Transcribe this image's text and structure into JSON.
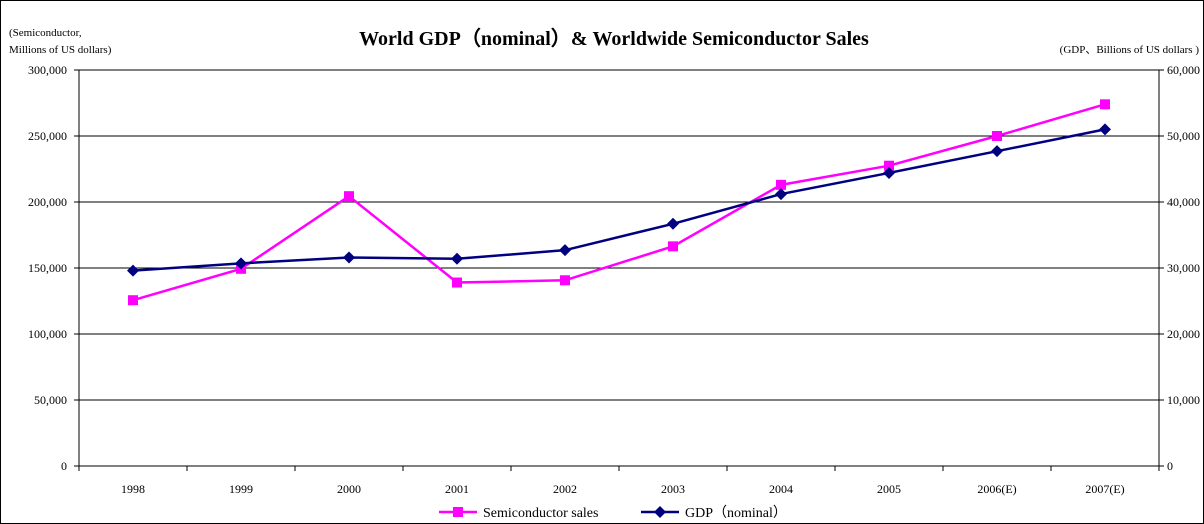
{
  "chart_data": {
    "type": "line",
    "title": "World GDP（nominal）& Worldwide Semiconductor Sales",
    "y_left_unit": [
      "(Semiconductor,",
      "Millions of US dollars)"
    ],
    "y_right_unit": "(GDP、Billions of US dollars )",
    "categories": [
      "1998",
      "1999",
      "2000",
      "2001",
      "2002",
      "2003",
      "2004",
      "2005",
      "2006(E)",
      "2007(E)"
    ],
    "y_left": {
      "range": [
        0,
        300000
      ],
      "ticks": [
        0,
        50000,
        100000,
        150000,
        200000,
        250000,
        300000
      ],
      "tick_labels": [
        "0",
        "50,000",
        "100,000",
        "150,000",
        "200,000",
        "250,000",
        "300,000"
      ]
    },
    "y_right": {
      "range": [
        0,
        60000
      ],
      "ticks": [
        0,
        10000,
        20000,
        30000,
        40000,
        50000,
        60000
      ],
      "tick_labels": [
        "0",
        "10,000",
        "20,000",
        "30,000",
        "40,000",
        "50,000",
        "60,000"
      ]
    },
    "grid": true,
    "legend_position": "bottom",
    "series": [
      {
        "name": "Semiconductor sales",
        "axis": "left",
        "color": "#ff00ff",
        "marker": "square",
        "values": [
          125600,
          149400,
          204400,
          139000,
          140700,
          166400,
          213000,
          227500,
          250000,
          274000
        ]
      },
      {
        "name": "GDP（nominal）",
        "axis": "right",
        "color": "#000080",
        "marker": "diamond",
        "values": [
          29600,
          30700,
          31600,
          31400,
          32700,
          36700,
          41200,
          44400,
          47700,
          51000
        ]
      }
    ]
  }
}
